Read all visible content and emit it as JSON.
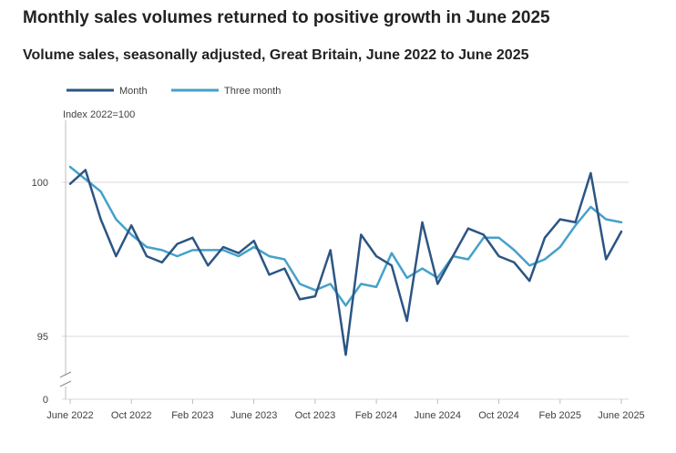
{
  "header": {
    "title": "Monthly sales volumes returned to positive growth in June 2025",
    "subtitle": "Volume sales, seasonally adjusted, Great Britain, June 2022 to June 2025"
  },
  "chart_data": {
    "type": "line",
    "title": "Monthly sales volumes returned to positive growth in June 2025",
    "subtitle": "Volume sales, seasonally adjusted, Great Britain, June 2022 to June 2025",
    "ylabel": "Index 2022=100",
    "xlabel": "",
    "ylim": [
      94,
      102
    ],
    "axis_break": true,
    "y_ticks": [
      {
        "value": 100,
        "label": "100"
      },
      {
        "value": 95,
        "label": "95"
      }
    ],
    "y_zero_label": "0",
    "x_ticks": [
      {
        "index": 0,
        "label": "June 2022"
      },
      {
        "index": 4,
        "label": "Oct 2022"
      },
      {
        "index": 8,
        "label": "Feb 2023"
      },
      {
        "index": 12,
        "label": "June 2023"
      },
      {
        "index": 16,
        "label": "Oct 2023"
      },
      {
        "index": 20,
        "label": "Feb 2024"
      },
      {
        "index": 24,
        "label": "June 2024"
      },
      {
        "index": 28,
        "label": "Oct 2024"
      },
      {
        "index": 32,
        "label": "Feb 2025"
      },
      {
        "index": 36,
        "label": "June 2025"
      }
    ],
    "grid": true,
    "legend_position": "top-left",
    "x": [
      "Jun 2022",
      "Jul 2022",
      "Aug 2022",
      "Sep 2022",
      "Oct 2022",
      "Nov 2022",
      "Dec 2022",
      "Jan 2023",
      "Feb 2023",
      "Mar 2023",
      "Apr 2023",
      "May 2023",
      "Jun 2023",
      "Jul 2023",
      "Aug 2023",
      "Sep 2023",
      "Oct 2023",
      "Nov 2023",
      "Dec 2023",
      "Jan 2024",
      "Feb 2024",
      "Mar 2024",
      "Apr 2024",
      "May 2024",
      "Jun 2024",
      "Jul 2024",
      "Aug 2024",
      "Sep 2024",
      "Oct 2024",
      "Nov 2024",
      "Dec 2024",
      "Jan 2025",
      "Feb 2025",
      "Mar 2025",
      "Apr 2025",
      "May 2025",
      "Jun 2025"
    ],
    "series": [
      {
        "name": "Month",
        "color": "#2c5583",
        "values": [
          99.95,
          100.4,
          98.8,
          97.6,
          98.6,
          97.6,
          97.4,
          98.0,
          98.2,
          97.3,
          97.9,
          97.7,
          98.1,
          97.0,
          97.2,
          96.2,
          96.3,
          97.8,
          94.4,
          98.3,
          97.6,
          97.3,
          95.5,
          98.7,
          96.7,
          97.6,
          98.5,
          98.3,
          97.6,
          97.4,
          96.8,
          98.2,
          98.8,
          98.7,
          100.3,
          97.5,
          98.4
        ]
      },
      {
        "name": "Three month",
        "color": "#45a1ca",
        "values": [
          100.5,
          100.1,
          99.7,
          98.8,
          98.3,
          97.9,
          97.8,
          97.6,
          97.8,
          97.8,
          97.8,
          97.6,
          97.9,
          97.6,
          97.5,
          96.7,
          96.5,
          96.7,
          96.0,
          96.7,
          96.6,
          97.7,
          96.9,
          97.2,
          96.9,
          97.6,
          97.5,
          98.2,
          98.2,
          97.8,
          97.3,
          97.5,
          97.9,
          98.6,
          99.2,
          98.8,
          98.7
        ]
      }
    ]
  }
}
